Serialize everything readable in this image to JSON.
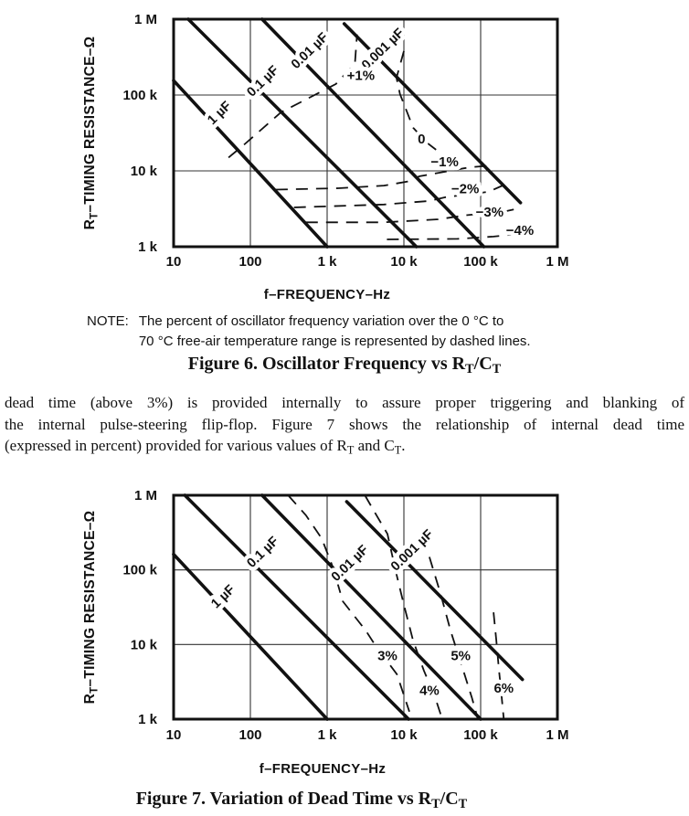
{
  "note": {
    "label": "NOTE:",
    "line1": "The percent of oscillator frequency variation over the 0 °C to",
    "line2": "70 °C free-air temperature range is represented by dashed lines."
  },
  "captions": {
    "fig6": {
      "t1": "Figure 6. Oscillator Frequency vs R",
      "s1": "T",
      "t2": "/C",
      "s2": "T"
    },
    "fig7": {
      "t1": "Figure 7. Variation of Dead Time vs R",
      "s1": "T",
      "t2": "/C",
      "s2": "T"
    }
  },
  "body": {
    "line1": "dead time (above 3%) is provided internally to assure proper triggering and blanking of",
    "line2": "the internal pulse-steering flip-flop. Figure 7 shows the relationship of internal dead time",
    "line3": {
      "t1": "(expressed in percent) provided for various values of R",
      "s1": "T",
      "t2": " and C",
      "s2": "T",
      "t3": "."
    }
  },
  "colors": {
    "ink": "#111111",
    "paper": "#ffffff"
  },
  "chart_data": [
    {
      "id": "fig6",
      "type": "line",
      "title": "Figure 6. Oscillator Frequency vs RT/CT",
      "x_scale": "log",
      "y_scale": "log",
      "xlim": [
        10,
        1000000
      ],
      "ylim": [
        1000,
        1000000
      ],
      "grid": true,
      "xlabel": "f–FREQUENCY–Hz",
      "ylabel_parts": {
        "pre": "R",
        "sub": "T",
        "post": "–TIMING RESISTANCE–Ω"
      },
      "x_ticks": [
        {
          "label": "10",
          "value": 10
        },
        {
          "label": "100",
          "value": 100
        },
        {
          "label": "1 k",
          "value": 1000
        },
        {
          "label": "10 k",
          "value": 10000
        },
        {
          "label": "100 k",
          "value": 100000
        },
        {
          "label": "1 M",
          "value": 1000000
        }
      ],
      "y_ticks": [
        {
          "label": "1 M",
          "value": 1000000
        },
        {
          "label": "100 k",
          "value": 100000
        },
        {
          "label": "10 k",
          "value": 10000
        },
        {
          "label": "1 k",
          "value": 1000
        }
      ],
      "series": [
        {
          "name": "1 µF",
          "role": "capacitor",
          "style": "solid",
          "points": [
            [
              10,
              155000
            ],
            [
              1000,
              1000
            ]
          ],
          "label_at": [
            43,
            53000
          ]
        },
        {
          "name": "0.1 µF",
          "role": "capacitor",
          "style": "solid",
          "points": [
            [
              15.5,
              1000000
            ],
            [
              14500,
              1000
            ]
          ],
          "label_at": [
            158,
            139000
          ]
        },
        {
          "name": "0.01 µF",
          "role": "capacitor",
          "style": "solid",
          "points": [
            [
              142,
              1000000
            ],
            [
              110000,
              1000
            ]
          ],
          "label_at": [
            645,
            350000
          ]
        },
        {
          "name": "0.001 µF",
          "role": "capacitor",
          "style": "solid",
          "points": [
            [
              1670,
              870000
            ],
            [
              330000,
              3800
            ]
          ],
          "label_at": [
            5800,
            370000
          ]
        },
        {
          "name": "+1%",
          "role": "contour",
          "style": "dashed",
          "points": [
            [
              52,
              15000
            ],
            [
              82,
              22000
            ],
            [
              250,
              59000
            ],
            [
              1300,
              140000
            ],
            [
              2300,
              260000
            ],
            [
              2450,
              630000
            ]
          ],
          "label_at": [
            2750,
            157000
          ]
        },
        {
          "name": "0",
          "role": "contour",
          "style": "dashed",
          "points": [
            [
              10000,
              380000
            ],
            [
              8000,
              169000
            ],
            [
              8900,
              103000
            ],
            [
              11200,
              57000
            ],
            [
              13200,
              37000
            ],
            [
              20500,
              23000
            ],
            [
              35000,
              15200
            ]
          ],
          "label_at": [
            17000,
            23000
          ]
        },
        {
          "name": "−1%",
          "role": "contour",
          "style": "dashed",
          "points": [
            [
              215,
              5660
            ],
            [
              1400,
              5900
            ],
            [
              5500,
              6400
            ],
            [
              11000,
              7200
            ],
            [
              16000,
              8500
            ],
            [
              74000,
              11200
            ],
            [
              121000,
              11600
            ]
          ],
          "label_at": [
            34000,
            11500
          ]
        },
        {
          "name": "−2%",
          "role": "contour",
          "style": "dashed",
          "points": [
            [
              370,
              3300
            ],
            [
              5500,
              3600
            ],
            [
              21000,
              4000
            ],
            [
              35000,
              4500
            ],
            [
              127000,
              5300
            ],
            [
              200000,
              6500
            ]
          ],
          "label_at": [
            63000,
            5100
          ]
        },
        {
          "name": "−3%",
          "role": "contour",
          "style": "dashed",
          "points": [
            [
              530,
              2100
            ],
            [
              5500,
              2100
            ],
            [
              28000,
              2300
            ],
            [
              64000,
              2600
            ],
            [
              200000,
              2900
            ],
            [
              270000,
              3100
            ]
          ],
          "label_at": [
            131000,
            2500
          ]
        },
        {
          "name": "−4%",
          "role": "contour",
          "style": "dashed",
          "points": [
            [
              6000,
              1250
            ],
            [
              50000,
              1270
            ],
            [
              147000,
              1360
            ],
            [
              480000,
              1550
            ]
          ],
          "label_at": [
            325000,
            1440
          ]
        }
      ]
    },
    {
      "id": "fig7",
      "type": "line",
      "title": "Figure 7. Variation of Dead Time vs RT/CT",
      "x_scale": "log",
      "y_scale": "log",
      "xlim": [
        10,
        1000000
      ],
      "ylim": [
        1000,
        1000000
      ],
      "grid": true,
      "xlabel": "f–FREQUENCY–Hz",
      "ylabel_parts": {
        "pre": "R",
        "sub": "T",
        "post": "–TIMING RESISTANCE–Ω"
      },
      "x_ticks": [
        {
          "label": "10",
          "value": 10
        },
        {
          "label": "100",
          "value": 100
        },
        {
          "label": "1 k",
          "value": 1000
        },
        {
          "label": "10 k",
          "value": 10000
        },
        {
          "label": "100 k",
          "value": 100000
        },
        {
          "label": "1 M",
          "value": 1000000
        }
      ],
      "y_ticks": [
        {
          "label": "1 M",
          "value": 1000000
        },
        {
          "label": "100 k",
          "value": 100000
        },
        {
          "label": "10 k",
          "value": 10000
        },
        {
          "label": "1 k",
          "value": 1000
        }
      ],
      "series": [
        {
          "name": "1 µF",
          "role": "capacitor",
          "style": "solid",
          "points": [
            [
              10,
              162000
            ],
            [
              1000,
              1000
            ]
          ],
          "label_at": [
            48,
            40000
          ]
        },
        {
          "name": "0.1 µF",
          "role": "capacitor",
          "style": "solid",
          "points": [
            [
              14,
              1000000
            ],
            [
              11500,
              1000
            ]
          ],
          "label_at": [
            158,
            158000
          ]
        },
        {
          "name": "0.01 µF",
          "role": "capacitor",
          "style": "solid",
          "points": [
            [
              142,
              1000000
            ],
            [
              100000,
              1000
            ]
          ],
          "label_at": [
            2150,
            112000
          ]
        },
        {
          "name": "0.001 µF",
          "role": "capacitor",
          "style": "solid",
          "points": [
            [
              1800,
              820000
            ],
            [
              350000,
              3400
            ]
          ],
          "label_at": [
            13900,
            167000
          ]
        },
        {
          "name": "3%",
          "role": "contour",
          "style": "dashed",
          "points": [
            [
              310,
              1000000
            ],
            [
              530,
              540000
            ],
            [
              850,
              263000
            ],
            [
              1200,
              105000
            ],
            [
              1600,
              38000
            ],
            [
              3200,
              15300
            ],
            [
              4400,
              9200
            ],
            [
              8100,
              4000
            ],
            [
              11800,
              1260
            ]
          ],
          "label_at": [
            6100,
            6200
          ]
        },
        {
          "name": "4%",
          "role": "contour",
          "style": "dashed",
          "points": [
            [
              3100,
              1000000
            ],
            [
              4400,
              537000
            ],
            [
              6100,
              303000
            ],
            [
              7800,
              98000
            ],
            [
              10000,
              34000
            ],
            [
              13100,
              11500
            ],
            [
              18200,
              4500
            ],
            [
              25300,
              2000
            ],
            [
              31600,
              1000
            ]
          ],
          "label_at": [
            21500,
            2100
          ]
        },
        {
          "name": "5%",
          "role": "contour",
          "style": "dashed",
          "points": [
            [
              21500,
              149000
            ],
            [
              30000,
              48000
            ],
            [
              40600,
              15300
            ],
            [
              61500,
              4000
            ],
            [
              77000,
              1920
            ],
            [
              92000,
              1000
            ]
          ],
          "label_at": [
            55000,
            6200
          ]
        },
        {
          "name": "6%",
          "role": "contour",
          "style": "dashed",
          "points": [
            [
              147000,
              27000
            ],
            [
              160000,
              11500
            ],
            [
              172000,
              4900
            ],
            [
              187000,
              2100
            ],
            [
              200000,
              1000
            ]
          ],
          "label_at": [
            200000,
            2280
          ]
        }
      ]
    }
  ]
}
